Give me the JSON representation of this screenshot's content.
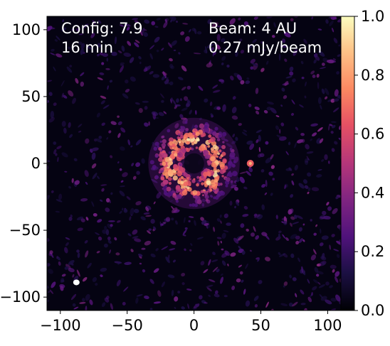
{
  "chart_data": {
    "type": "heatmap",
    "colormap": "magma",
    "xlim": [
      -110,
      120
    ],
    "ylim": [
      -110,
      110
    ],
    "x_ticks": [
      -100,
      -50,
      0,
      50,
      100
    ],
    "y_ticks": [
      100,
      50,
      0,
      -50,
      -100
    ],
    "x_tick_labels": [
      "−100",
      "−50",
      "0",
      "50",
      "100"
    ],
    "y_tick_labels": [
      "100",
      "50",
      "0",
      "−50",
      "−100"
    ],
    "colorbar": {
      "range": [
        0.0,
        1.0
      ],
      "ticks": [
        0.0,
        0.2,
        0.4,
        0.6,
        0.8,
        1.0
      ],
      "tick_labels": [
        "0.0",
        "0.2",
        "0.4",
        "0.6",
        "0.8",
        "1.0"
      ]
    },
    "features": {
      "ring": {
        "center": [
          0,
          0
        ],
        "radius": 18,
        "peak_value": 0.85
      },
      "point_source": {
        "position": [
          40,
          0
        ],
        "peak_value": 0.65
      },
      "beam_marker": {
        "position": [
          -88,
          -89
        ],
        "color": "#ffffff"
      }
    },
    "annotations": {
      "config_line": "Config: 7.9",
      "time_line": "16 min",
      "beam_line": "Beam: 4 AU",
      "noise_line": "0.27 mJy/beam"
    }
  }
}
